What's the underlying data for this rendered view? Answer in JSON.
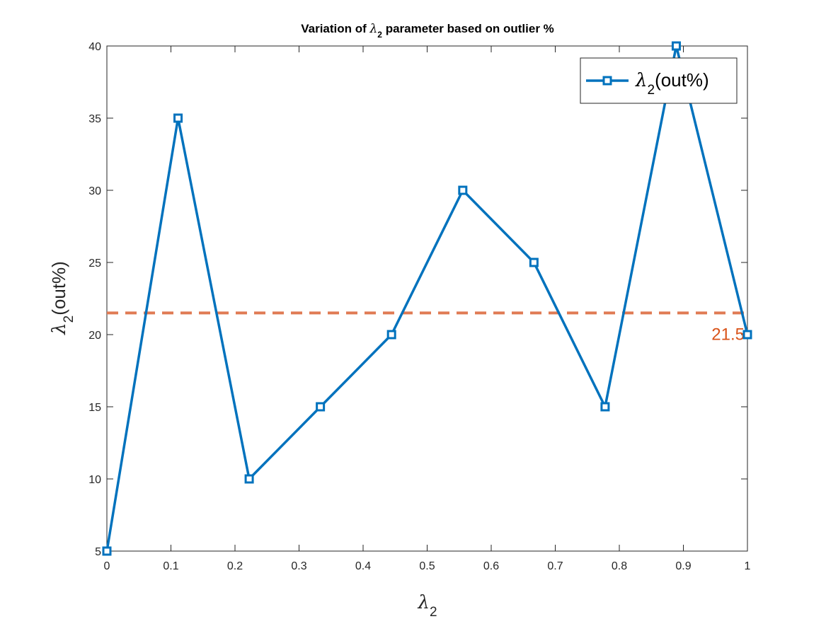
{
  "chart_data": {
    "type": "line",
    "title": {
      "prefix": "Variation of ",
      "symbol": "λ",
      "subscript": "2",
      "suffix": " parameter based on outlier %"
    },
    "xlabel": {
      "symbol": "λ",
      "subscript": "2",
      "suffix": ""
    },
    "ylabel": {
      "symbol": "λ",
      "subscript": "2",
      "suffix": "(out%)"
    },
    "xlim": [
      0,
      1
    ],
    "ylim": [
      5,
      40
    ],
    "x_ticks": [
      0,
      0.1,
      0.2,
      0.3,
      0.4,
      0.5,
      0.6,
      0.7,
      0.8,
      0.9,
      1
    ],
    "x_tick_labels": [
      "0",
      "0.1",
      "0.2",
      "0.3",
      "0.4",
      "0.5",
      "0.6",
      "0.7",
      "0.8",
      "0.9",
      "1"
    ],
    "y_ticks": [
      5,
      10,
      15,
      20,
      25,
      30,
      35,
      40
    ],
    "y_tick_labels": [
      "5",
      "10",
      "15",
      "20",
      "25",
      "30",
      "35",
      "40"
    ],
    "grid": false,
    "legend_position": "top-right",
    "series": [
      {
        "legend": {
          "symbol": "λ",
          "subscript": "2",
          "suffix": "(out%)"
        },
        "color": "#0072BD",
        "marker": "square",
        "x": [
          0,
          0.1111,
          0.2222,
          0.3333,
          0.4444,
          0.5556,
          0.6667,
          0.7778,
          0.8889,
          1
        ],
        "y": [
          5,
          35,
          10,
          15,
          20,
          30,
          25,
          15,
          40,
          20
        ]
      }
    ],
    "reference_line": {
      "y": 21.5,
      "label": "21.5",
      "color": "#E07B54",
      "label_color": "#D95319",
      "style": "dashed"
    }
  }
}
